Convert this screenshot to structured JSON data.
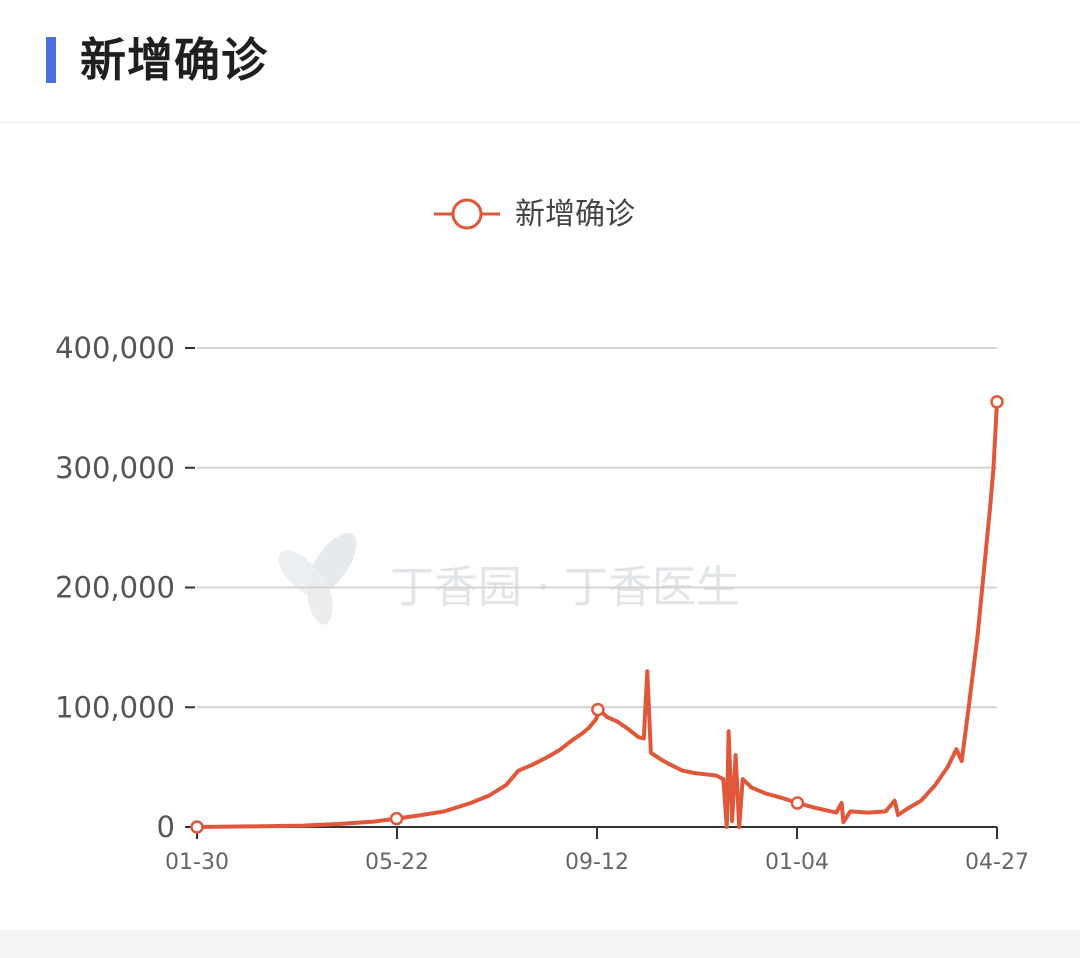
{
  "header": {
    "title": "新增确诊"
  },
  "watermark": {
    "text": "丁香园 · 丁香医生"
  },
  "chart_data": {
    "type": "line",
    "legend": {
      "label": "新增确诊",
      "position": "top-center"
    },
    "color": "#e0573a",
    "x_ticks": [
      "01-30",
      "05-22",
      "09-12",
      "01-04",
      "04-27"
    ],
    "y_ticks": [
      "0",
      "100,000",
      "200,000",
      "300,000",
      "400,000"
    ],
    "ylim": [
      0,
      400000
    ],
    "grid": true,
    "x_range_days": [
      0,
      453
    ],
    "series": [
      {
        "name": "新增确诊",
        "points": [
          [
            0,
            0
          ],
          [
            30,
            500
          ],
          [
            60,
            1200
          ],
          [
            80,
            2500
          ],
          [
            100,
            4500
          ],
          [
            113,
            7000
          ],
          [
            125,
            9500
          ],
          [
            140,
            13000
          ],
          [
            155,
            20000
          ],
          [
            165,
            26000
          ],
          [
            175,
            35000
          ],
          [
            182,
            47000
          ],
          [
            190,
            52000
          ],
          [
            198,
            58000
          ],
          [
            205,
            64000
          ],
          [
            212,
            72000
          ],
          [
            218,
            78000
          ],
          [
            222,
            83000
          ],
          [
            226,
            90000
          ],
          [
            228,
            98000
          ],
          [
            232,
            92000
          ],
          [
            238,
            88000
          ],
          [
            244,
            82000
          ],
          [
            250,
            75000
          ],
          [
            253,
            74000
          ],
          [
            255,
            130000
          ],
          [
            257,
            62000
          ],
          [
            262,
            57000
          ],
          [
            268,
            52000
          ],
          [
            275,
            47000
          ],
          [
            282,
            45000
          ],
          [
            288,
            44000
          ],
          [
            294,
            43000
          ],
          [
            298,
            40000
          ],
          [
            300,
            0
          ],
          [
            301,
            80000
          ],
          [
            303,
            5000
          ],
          [
            305,
            60000
          ],
          [
            307,
            0
          ],
          [
            309,
            40000
          ],
          [
            314,
            33000
          ],
          [
            322,
            28000
          ],
          [
            332,
            24000
          ],
          [
            340,
            20000
          ],
          [
            350,
            16000
          ],
          [
            362,
            12000
          ],
          [
            365,
            20000
          ],
          [
            366,
            4000
          ],
          [
            370,
            13000
          ],
          [
            380,
            12000
          ],
          [
            390,
            13000
          ],
          [
            395,
            22000
          ],
          [
            397,
            10000
          ],
          [
            402,
            15000
          ],
          [
            410,
            22000
          ],
          [
            418,
            35000
          ],
          [
            425,
            50000
          ],
          [
            430,
            65000
          ],
          [
            433,
            55000
          ],
          [
            437,
            100000
          ],
          [
            442,
            160000
          ],
          [
            446,
            220000
          ],
          [
            449,
            265000
          ],
          [
            451,
            300000
          ],
          [
            453,
            355000
          ]
        ],
        "markers": [
          [
            0,
            0
          ],
          [
            113,
            7000
          ],
          [
            227,
            98000
          ],
          [
            340,
            20000
          ],
          [
            453,
            355000
          ]
        ]
      }
    ]
  }
}
